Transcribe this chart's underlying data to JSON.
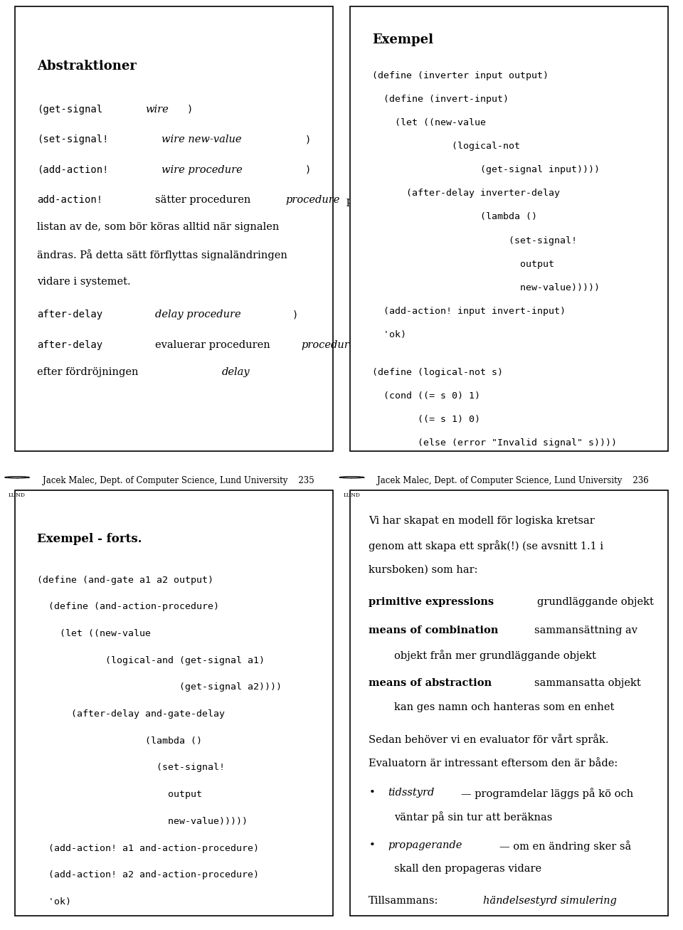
{
  "bg_color": "#ffffff",
  "panel2_code": [
    "(define (inverter input output)",
    "  (define (invert-input)",
    "    (let ((new-value",
    "              (logical-not",
    "                   (get-signal input))))",
    "      (after-delay inverter-delay",
    "                   (lambda ()",
    "                        (set-signal!",
    "                          output",
    "                          new-value)))))",
    "  (add-action! input invert-input)",
    "  'ok)",
    "",
    "(define (logical-not s)",
    "  (cond ((= s 0) 1)",
    "        ((= s 1) 0)",
    "        (else (error \"Invalid signal\" s))))"
  ],
  "panel3_code": [
    "(define (and-gate a1 a2 output)",
    "  (define (and-action-procedure)",
    "    (let ((new-value",
    "            (logical-and (get-signal a1)",
    "                         (get-signal a2))))",
    "      (after-delay and-gate-delay",
    "                   (lambda ()",
    "                     (set-signal!",
    "                       output",
    "                       new-value)))))",
    "  (add-action! a1 and-action-procedure)",
    "  (add-action! a2 and-action-procedure)",
    "  'ok)"
  ],
  "footer_left": "Jacek Malec, Dept. of Computer Science, Lund University    235",
  "footer_right": "Jacek Malec, Dept. of Computer Science, Lund University    236"
}
